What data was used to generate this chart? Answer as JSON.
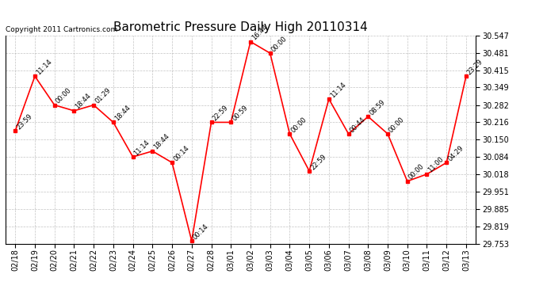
{
  "title": "Barometric Pressure Daily High 20110314",
  "copyright": "Copyright 2011 Cartronics.com",
  "x_labels": [
    "02/18",
    "02/19",
    "02/20",
    "02/21",
    "02/22",
    "02/23",
    "02/24",
    "02/25",
    "02/26",
    "02/27",
    "02/28",
    "03/01",
    "03/02",
    "03/03",
    "03/04",
    "03/05",
    "03/06",
    "03/07",
    "03/08",
    "03/09",
    "03/10",
    "03/11",
    "03/12",
    "03/13"
  ],
  "y_values": [
    30.184,
    30.392,
    30.282,
    30.26,
    30.282,
    30.216,
    30.084,
    30.106,
    30.062,
    29.763,
    30.216,
    30.216,
    30.524,
    30.48,
    30.172,
    30.03,
    30.305,
    30.172,
    30.238,
    30.172,
    29.991,
    30.018,
    30.062,
    30.392
  ],
  "time_labels": [
    "23:59",
    "11:14",
    "00:00",
    "18:44",
    "01:29",
    "18:44",
    "11:14",
    "18:44",
    "00:14",
    "00:14",
    "22:59",
    "00:59",
    "16:44",
    "00:00",
    "00:00",
    "22:59",
    "11:14",
    "00:44",
    "08:59",
    "00:00",
    "00:00",
    "11:00",
    "04:29",
    "23:29"
  ],
  "ylim": [
    29.753,
    30.547
  ],
  "yticks": [
    29.753,
    29.819,
    29.885,
    29.951,
    30.018,
    30.084,
    30.15,
    30.216,
    30.282,
    30.349,
    30.415,
    30.481,
    30.547
  ],
  "line_color": "red",
  "marker_color": "red",
  "background_color": "#ffffff",
  "grid_color": "#aaaaaa",
  "title_fontsize": 11,
  "label_fontsize": 6,
  "tick_fontsize": 7,
  "copyright_fontsize": 6.5
}
